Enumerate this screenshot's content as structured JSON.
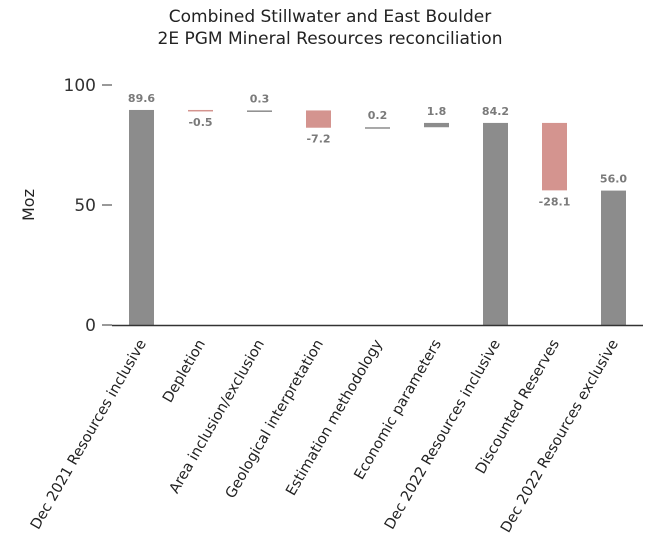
{
  "chart_data": {
    "type": "bar",
    "subtype": "waterfall",
    "title_lines": [
      "Combined Stillwater and East Boulder",
      "2E PGM Mineral Resources reconciliation"
    ],
    "ylabel": "Moz",
    "xlabel": "",
    "ylim": [
      0,
      100
    ],
    "yticks": [
      0,
      50,
      100
    ],
    "grid": false,
    "categories": [
      "Dec 2021 Resources inclusive",
      "Depletion",
      "Area inclusion/exclusion",
      "Geological interpretation",
      "Estimation methodology",
      "Economic parameters",
      "Dec 2022 Resources inclusive",
      "Discounted Reserves",
      "Dec 2022 Resources exclusive"
    ],
    "bars": [
      {
        "kind": "total",
        "start": 0,
        "end": 89.6,
        "label": "89.6"
      },
      {
        "kind": "decrease",
        "start": 89.6,
        "end": 89.1,
        "label": "-0.5"
      },
      {
        "kind": "increase",
        "start": 89.1,
        "end": 89.4,
        "label": "0.3"
      },
      {
        "kind": "decrease",
        "start": 89.4,
        "end": 82.2,
        "label": "-7.2"
      },
      {
        "kind": "increase",
        "start": 82.2,
        "end": 82.4,
        "label": "0.2"
      },
      {
        "kind": "increase",
        "start": 82.4,
        "end": 84.2,
        "label": "1.8"
      },
      {
        "kind": "total",
        "start": 0,
        "end": 84.2,
        "label": "84.2"
      },
      {
        "kind": "decrease",
        "start": 84.2,
        "end": 56.1,
        "label": "-28.1"
      },
      {
        "kind": "total",
        "start": 0,
        "end": 56.0,
        "label": "56.0"
      }
    ],
    "colors": {
      "total": "#8c8c8c",
      "increase": "#8c8c8c",
      "decrease": "#d4948f",
      "axis": "#333333",
      "label": "#7a7a7a"
    }
  }
}
